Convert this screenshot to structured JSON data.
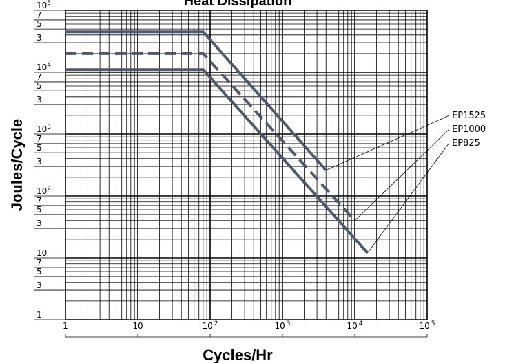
{
  "chart_data": {
    "type": "line",
    "title": "Heat Dissipation",
    "xlabel": "Cycles/Hr",
    "ylabel": "Joules/Cycle",
    "x_scale": "log",
    "y_scale": "log",
    "xlim": [
      1,
      100000
    ],
    "ylim": [
      1,
      100000
    ],
    "grid": true,
    "x_tick_labels": [
      {
        "value": 1,
        "base": "1",
        "exp": ""
      },
      {
        "value": 10,
        "base": "10",
        "exp": ""
      },
      {
        "value": 100,
        "base": "10",
        "exp": "2"
      },
      {
        "value": 1000,
        "base": "10",
        "exp": "3"
      },
      {
        "value": 10000,
        "base": "10",
        "exp": "4"
      },
      {
        "value": 100000,
        "base": "10",
        "exp": "5"
      }
    ],
    "y_tick_labels": [
      {
        "value": 100000,
        "base": "10",
        "exp": "5"
      },
      {
        "value": 70000,
        "base": "7",
        "exp": ""
      },
      {
        "value": 50000,
        "base": "5",
        "exp": ""
      },
      {
        "value": 30000,
        "base": "3",
        "exp": ""
      },
      {
        "value": 10000,
        "base": "10",
        "exp": "4"
      },
      {
        "value": 7000,
        "base": "7",
        "exp": ""
      },
      {
        "value": 5000,
        "base": "5",
        "exp": ""
      },
      {
        "value": 3000,
        "base": "3",
        "exp": ""
      },
      {
        "value": 1000,
        "base": "10",
        "exp": "3"
      },
      {
        "value": 700,
        "base": "7",
        "exp": ""
      },
      {
        "value": 500,
        "base": "5",
        "exp": ""
      },
      {
        "value": 300,
        "base": "3",
        "exp": ""
      },
      {
        "value": 100,
        "base": "10",
        "exp": "2"
      },
      {
        "value": 70,
        "base": "7",
        "exp": ""
      },
      {
        "value": 50,
        "base": "5",
        "exp": ""
      },
      {
        "value": 30,
        "base": "3",
        "exp": ""
      },
      {
        "value": 10,
        "base": "10",
        "exp": ""
      },
      {
        "value": 7,
        "base": "7",
        "exp": ""
      },
      {
        "value": 5,
        "base": "5",
        "exp": ""
      },
      {
        "value": 3,
        "base": "3",
        "exp": ""
      },
      {
        "value": 1,
        "base": "1",
        "exp": ""
      }
    ],
    "series": [
      {
        "name": "EP1525",
        "style": "solid",
        "x": [
          1,
          80,
          4000
        ],
        "y": [
          45000,
          45000,
          260
        ]
      },
      {
        "name": "EP1000",
        "style": "dashed",
        "x": [
          1,
          80,
          10000
        ],
        "y": [
          20000,
          20000,
          40
        ]
      },
      {
        "name": "EP825",
        "style": "solid",
        "x": [
          1,
          80,
          15000
        ],
        "y": [
          11000,
          11000,
          12
        ]
      }
    ],
    "colors": {
      "series": "#4d5a6d",
      "grid": "#000000",
      "background": "#ffffff"
    }
  }
}
